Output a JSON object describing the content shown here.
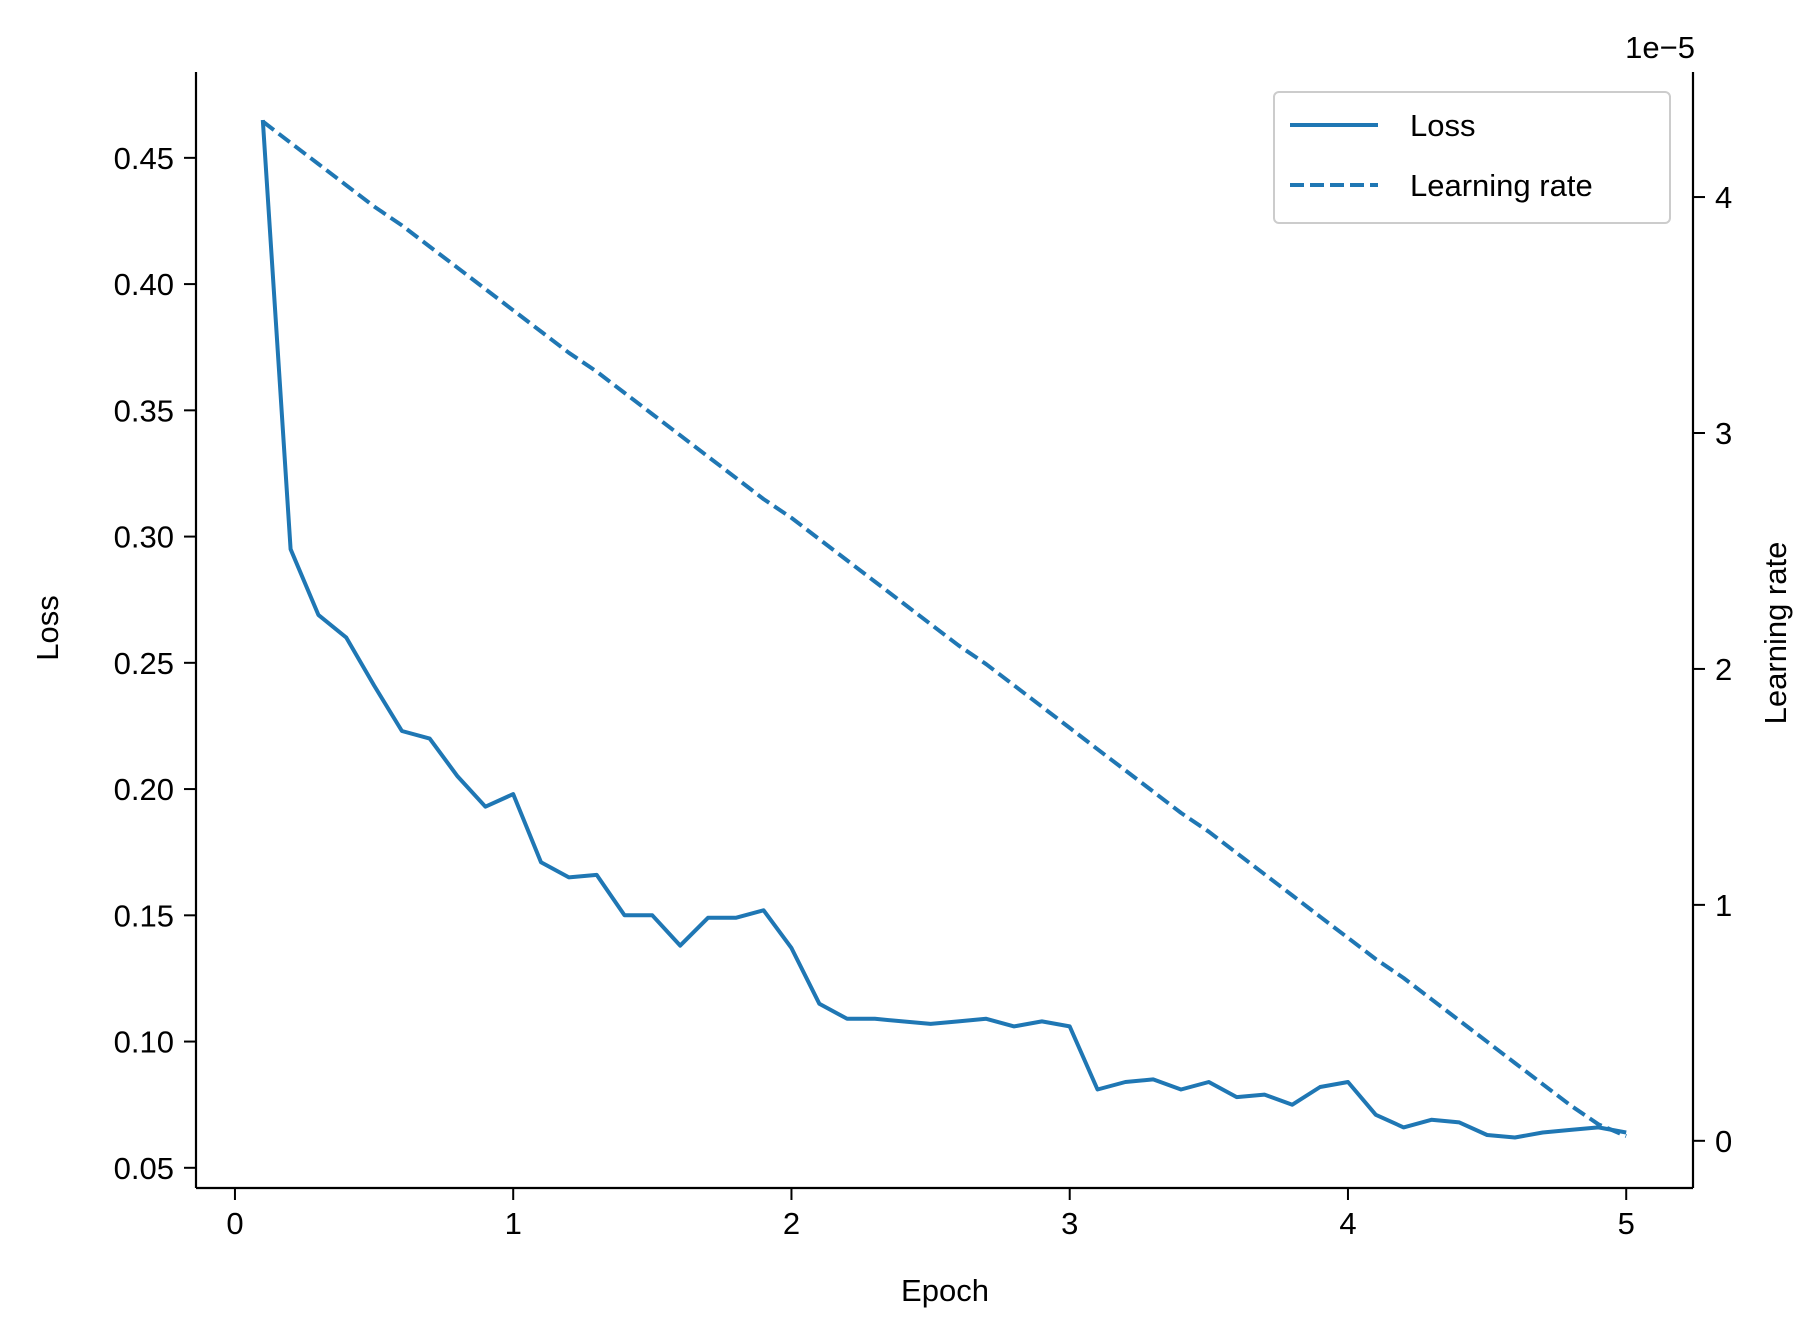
{
  "chart_data": {
    "type": "line",
    "xlabel": "Epoch",
    "ylabel": "Loss",
    "y2label": "Learning rate",
    "y2_offset_text": "1e−5",
    "xlim": [
      -0.14,
      5.24
    ],
    "ylim": [
      0.042,
      0.484
    ],
    "y2lim": [
      -0.2,
      4.53
    ],
    "x_ticks": [
      0,
      1,
      2,
      3,
      4,
      5
    ],
    "x_tick_labels": [
      "0",
      "1",
      "2",
      "3",
      "4",
      "5"
    ],
    "y_ticks": [
      0.05,
      0.1,
      0.15,
      0.2,
      0.25,
      0.3,
      0.35,
      0.4,
      0.45
    ],
    "y_tick_labels": [
      "0.05",
      "0.10",
      "0.15",
      "0.20",
      "0.25",
      "0.30",
      "0.35",
      "0.40",
      "0.45"
    ],
    "y2_ticks": [
      0,
      1,
      2,
      3,
      4
    ],
    "y2_tick_labels": [
      "0",
      "1",
      "2",
      "3",
      "4"
    ],
    "grid": false,
    "legend": {
      "placement": "top-right",
      "entries": [
        "Loss",
        "Learning rate"
      ]
    },
    "color": "#1f77b4",
    "x": [
      0.1,
      0.2,
      0.3,
      0.4,
      0.5,
      0.6,
      0.7,
      0.8,
      0.9,
      1.0,
      1.1,
      1.2,
      1.3,
      1.4,
      1.5,
      1.6,
      1.7,
      1.8,
      1.9,
      2.0,
      2.1,
      2.2,
      2.3,
      2.4,
      2.5,
      2.6,
      2.7,
      2.8,
      2.9,
      3.0,
      3.1,
      3.2,
      3.3,
      3.4,
      3.5,
      3.6,
      3.7,
      3.8,
      3.9,
      4.0,
      4.1,
      4.2,
      4.3,
      4.4,
      4.5,
      4.6,
      4.7,
      4.8,
      4.9,
      5.0
    ],
    "series": [
      {
        "name": "Loss",
        "axis": "left",
        "style": "solid",
        "values": [
          0.465,
          0.295,
          0.269,
          0.26,
          0.241,
          0.223,
          0.22,
          0.205,
          0.193,
          0.198,
          0.171,
          0.165,
          0.166,
          0.15,
          0.15,
          0.138,
          0.149,
          0.149,
          0.152,
          0.137,
          0.115,
          0.109,
          0.109,
          0.108,
          0.107,
          0.108,
          0.109,
          0.106,
          0.108,
          0.106,
          0.081,
          0.084,
          0.085,
          0.081,
          0.084,
          0.078,
          0.079,
          0.075,
          0.082,
          0.084,
          0.071,
          0.066,
          0.069,
          0.068,
          0.063,
          0.062,
          0.064,
          0.065,
          0.066,
          0.064
        ]
      },
      {
        "name": "Learning rate",
        "axis": "right",
        "style": "dashed",
        "values": [
          4.32,
          4.23,
          4.14,
          4.05,
          3.96,
          3.88,
          3.79,
          3.7,
          3.61,
          3.52,
          3.43,
          3.34,
          3.26,
          3.17,
          3.08,
          2.99,
          2.9,
          2.81,
          2.72,
          2.64,
          2.55,
          2.46,
          2.37,
          2.28,
          2.19,
          2.1,
          2.02,
          1.93,
          1.84,
          1.75,
          1.66,
          1.57,
          1.48,
          1.39,
          1.31,
          1.22,
          1.13,
          1.04,
          0.95,
          0.86,
          0.77,
          0.69,
          0.6,
          0.51,
          0.42,
          0.33,
          0.24,
          0.15,
          0.07,
          0.02
        ]
      }
    ]
  }
}
